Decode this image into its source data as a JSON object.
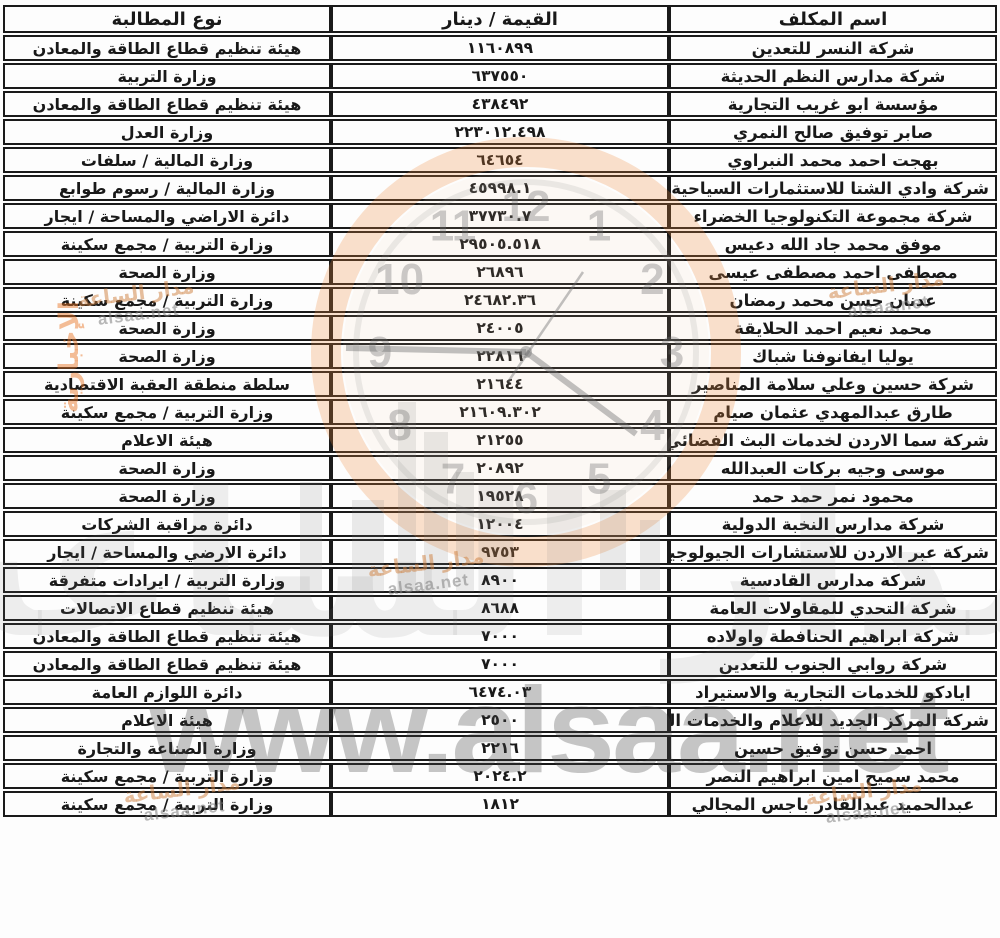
{
  "table": {
    "headers": {
      "name": "اسم المكلف",
      "value": "القيمة / دينار",
      "type": "نوع المطالبة"
    },
    "rows": [
      {
        "name": "شركة النسر للتعدين",
        "value": "١١٦٠٨٩٩",
        "type": "هيئة تنظيم قطاع الطاقة والمعادن"
      },
      {
        "name": "شركة مدارس النظم الحديثة",
        "value": "٦٣٧٥٥٠",
        "type": "وزارة التربية"
      },
      {
        "name": "مؤسسة ابو غريب التجارية",
        "value": "٤٣٨٤٩٢",
        "type": "هيئة تنظيم قطاع الطاقة والمعادن"
      },
      {
        "name": "صابر توفيق صالح النمري",
        "value": "٢٢٣٠١٢.٤٩٨",
        "type": "وزارة العدل"
      },
      {
        "name": "بهجت احمد محمد النبراوي",
        "value": "٦٤٦٥٤",
        "type": "وزارة المالية / سلفات"
      },
      {
        "name": "شركة وادي الشتا للاستثمارات السياحية",
        "value": "٤٥٩٩٨.١",
        "type": "وزارة المالية / رسوم طوابع"
      },
      {
        "name": "شركة مجموعة التكنولوجيا الخضراء",
        "value": "٣٧٧٣٠.٧",
        "type": "دائرة الاراضي والمساحة / ايجار"
      },
      {
        "name": "موفق محمد جاد الله دعيس",
        "value": "٢٩٥٠٥.٥١٨",
        "type": "وزارة التربية / مجمع سكينة"
      },
      {
        "name": "مصطفى احمد مصطفى عيسى",
        "value": "٢٦٨٩٦",
        "type": "وزارة الصحة"
      },
      {
        "name": "عدنان حسن محمد رمضان",
        "value": "٢٤٦٨٢.٣٦",
        "type": "وزارة التربية / مجمع سكينة"
      },
      {
        "name": "محمد نعيم احمد الحلايقة",
        "value": "٢٤٠٠٥",
        "type": "وزارة الصحة"
      },
      {
        "name": "يوليا ايفانوفنا شباك",
        "value": "٢٢٨١٦",
        "type": "وزارة الصحة"
      },
      {
        "name": "شركة حسين وعلي سلامة المناصير",
        "value": "٢١٦٤٤",
        "type": "سلطة منطقة العقبة الاقتصادية"
      },
      {
        "name": "طارق عبدالمهدي عثمان صيام",
        "value": "٢١٦٠٩.٣٠٢",
        "type": "وزارة التربية / مجمع سكينة"
      },
      {
        "name": "شركة سما الاردن لخدمات البث الفضائي",
        "value": "٢١٢٥٥",
        "type": "هيئة الاعلام"
      },
      {
        "name": "موسى وجيه بركات العبدالله",
        "value": "٢٠٨٩٢",
        "type": "وزارة الصحة"
      },
      {
        "name": "محمود نمر حمد حمد",
        "value": "١٩٥٢٨",
        "type": "وزارة الصحة"
      },
      {
        "name": "شركة مدارس النخبة الدولية",
        "value": "١٢٠٠٤",
        "type": "دائرة مراقبة الشركات"
      },
      {
        "name": "شركة عبر الاردن للاستشارات الجيولوجية",
        "value": "٩٧٥٣",
        "type": "دائرة الارضي والمساحة / ايجار"
      },
      {
        "name": "شركة مدارس القادسية",
        "value": "٨٩٠٠",
        "type": "وزارة التربية / ايرادات متفرقة"
      },
      {
        "name": "شركة التحدي للمقاولات العامة",
        "value": "٨٦٨٨",
        "type": "هيئة تنظيم قطاع الاتصالات"
      },
      {
        "name": "شركة ابراهيم الحنافطة واولاده",
        "value": "٧٠٠٠",
        "type": "هيئة تنظيم قطاع الطاقة والمعادن"
      },
      {
        "name": "شركة روابي الجنوب للتعدين",
        "value": "٧٠٠٠",
        "type": "هيئة تنظيم قطاع الطاقة والمعادن"
      },
      {
        "name": "ايادكو للخدمات التجارية والاستيراد",
        "value": "٦٤٧٤.٠٣",
        "type": "دائرة اللوازم العامة"
      },
      {
        "name": "شركة المركز الجديد للاعلام والخدمات الفنية",
        "value": "٢٥٠٠",
        "type": "هيئة الاعلام"
      },
      {
        "name": "احمد حسن توفيق حسين",
        "value": "٢٢١٦",
        "type": "وزارة الصناعة والتجارة"
      },
      {
        "name": "محمد سميح امين ابراهيم النصر",
        "value": "٢٠٢٤.٢",
        "type": "وزارة التربية / مجمع سكينة"
      },
      {
        "name": "عبدالحميد عبدالقادر باجس المجالي",
        "value": "١٨١٢",
        "type": "وزارة التربية / مجمع سكينة"
      }
    ]
  },
  "watermark": {
    "clock_numbers": [
      "1",
      "2",
      "3",
      "4",
      "5",
      "6",
      "7",
      "8",
      "9",
      "10",
      "11",
      "12"
    ],
    "brand_arabic": "مدار الساعة",
    "brand_latin": "alsaa.net",
    "big_text": "مدار الساعة",
    "url_text": "www.alsaa.net",
    "side_text": "الإخبارية",
    "accent_color": "#f08c3c"
  }
}
